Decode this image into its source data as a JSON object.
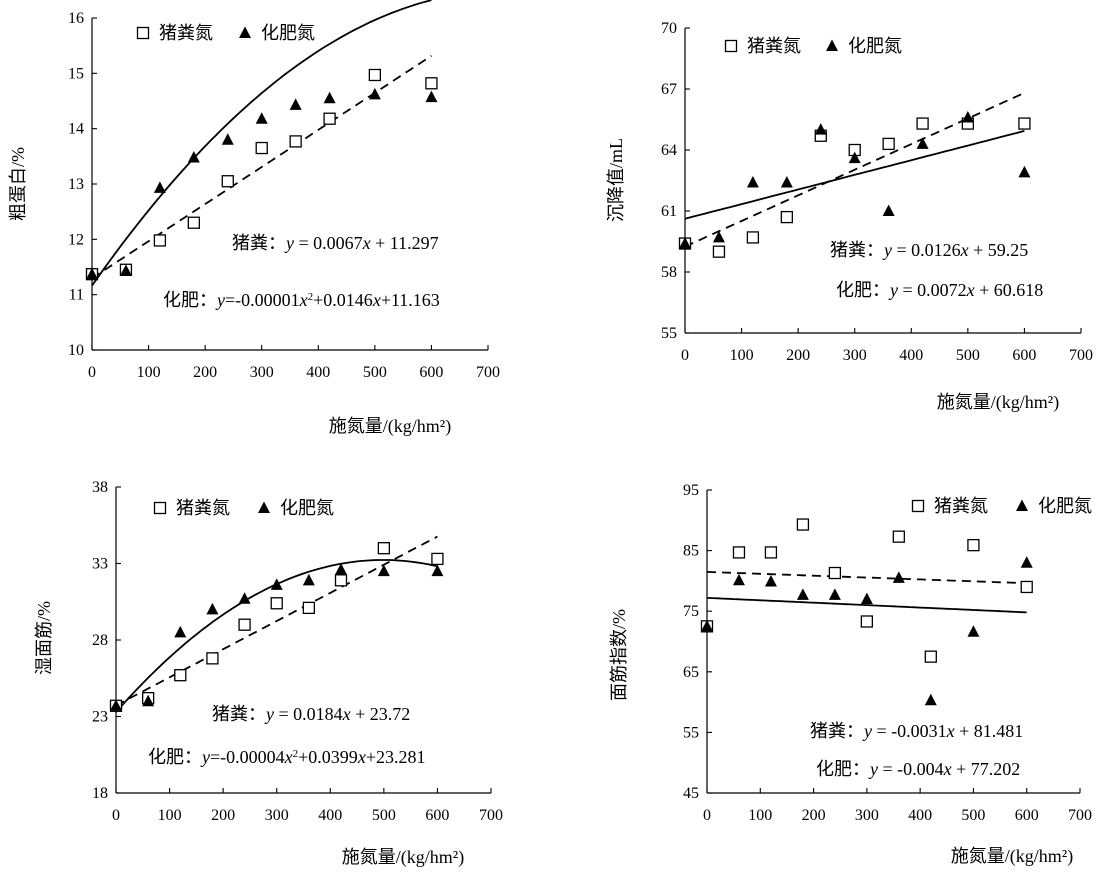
{
  "chart_data": [
    {
      "type": "scatter",
      "ylabel": "粗蛋白/%",
      "xlabel": "施氮量/(kg/hm²)",
      "xlim": [
        0,
        700
      ],
      "ylim": [
        10,
        16
      ],
      "xticks": [
        0,
        100,
        200,
        300,
        400,
        500,
        600,
        700
      ],
      "yticks": [
        10,
        11,
        12,
        13,
        14,
        15,
        16
      ],
      "legend_position": "top-left",
      "series": [
        {
          "name": "猪粪氮",
          "marker": "open-square",
          "x": [
            0,
            60,
            120,
            180,
            240,
            300,
            360,
            420,
            500,
            600
          ],
          "y": [
            11.37,
            11.45,
            11.98,
            12.3,
            13.05,
            13.65,
            13.77,
            14.18,
            14.97,
            14.82
          ]
        },
        {
          "name": "化肥氮",
          "marker": "filled-triangle",
          "x": [
            0,
            60,
            120,
            180,
            240,
            300,
            360,
            420,
            500,
            600
          ],
          "y": [
            11.37,
            11.43,
            12.93,
            13.48,
            13.8,
            14.18,
            14.43,
            14.55,
            14.62,
            14.57
          ]
        }
      ],
      "fits": [
        {
          "style": "dashed",
          "kind": "linear",
          "coef": [
            0.0067,
            11.297
          ],
          "range": [
            0,
            600
          ]
        },
        {
          "style": "solid",
          "kind": "quadratic",
          "coef": [
            -1e-05,
            0.0146,
            11.163
          ],
          "range": [
            0,
            600
          ]
        }
      ],
      "annotations": {
        "eq1_prefix": "猪粪：",
        "eq1_body": " = 0.0067",
        "eq1_tail": " + 11.297",
        "eq2_prefix": "化肥：",
        "eq2_a": "=-0.00001",
        "eq2_b": "+0.0146",
        "eq2_c": "+11.163"
      }
    },
    {
      "type": "scatter",
      "ylabel": "沉降值/mL",
      "xlabel": "施氮量/(kg/hm²)",
      "xlim": [
        0,
        700
      ],
      "ylim": [
        55,
        70
      ],
      "xticks": [
        0,
        100,
        200,
        300,
        400,
        500,
        600,
        700
      ],
      "yticks": [
        55,
        58,
        61,
        64,
        67,
        70
      ],
      "legend_position": "top-left",
      "series": [
        {
          "name": "猪粪氮",
          "marker": "open-square",
          "x": [
            0,
            60,
            120,
            180,
            240,
            300,
            360,
            420,
            500,
            600
          ],
          "y": [
            59.4,
            59.0,
            59.7,
            60.7,
            64.7,
            64.0,
            64.3,
            65.3,
            65.3,
            65.3
          ]
        },
        {
          "name": "化肥氮",
          "marker": "filled-triangle",
          "x": [
            0,
            60,
            120,
            180,
            240,
            300,
            360,
            420,
            500,
            600
          ],
          "y": [
            59.4,
            59.7,
            62.4,
            62.4,
            65.0,
            63.6,
            61.0,
            64.3,
            65.6,
            62.9
          ]
        }
      ],
      "fits": [
        {
          "style": "dashed",
          "kind": "linear",
          "coef": [
            0.0126,
            59.25
          ],
          "range": [
            0,
            600
          ]
        },
        {
          "style": "solid",
          "kind": "linear",
          "coef": [
            0.0072,
            60.618
          ],
          "range": [
            0,
            600
          ]
        }
      ],
      "annotations": {
        "eq1_prefix": "猪粪：",
        "eq1_body": " = 0.0126",
        "eq1_tail": " + 59.25",
        "eq2_prefix": "化肥：",
        "eq2_body": " = 0.0072",
        "eq2_tail": " + 60.618"
      }
    },
    {
      "type": "scatter",
      "ylabel": "湿面筋/%",
      "xlabel": "施氮量/(kg/hm²)",
      "xlim": [
        0,
        700
      ],
      "ylim": [
        18,
        38
      ],
      "xticks": [
        0,
        100,
        200,
        300,
        400,
        500,
        600,
        700
      ],
      "yticks": [
        18,
        23,
        28,
        33,
        38
      ],
      "legend_position": "top-left",
      "series": [
        {
          "name": "猪粪氮",
          "marker": "open-square",
          "x": [
            0,
            60,
            120,
            180,
            240,
            300,
            360,
            420,
            500,
            600
          ],
          "y": [
            23.7,
            24.2,
            25.7,
            26.8,
            29.0,
            30.4,
            30.1,
            31.9,
            34.0,
            33.3
          ]
        },
        {
          "name": "化肥氮",
          "marker": "filled-triangle",
          "x": [
            0,
            60,
            120,
            180,
            240,
            300,
            360,
            420,
            500,
            600
          ],
          "y": [
            23.7,
            24.0,
            28.5,
            30.0,
            30.7,
            31.6,
            31.9,
            32.6,
            32.5,
            32.5
          ]
        }
      ],
      "fits": [
        {
          "style": "dashed",
          "kind": "linear",
          "coef": [
            0.0184,
            23.72
          ],
          "range": [
            0,
            600
          ]
        },
        {
          "style": "solid",
          "kind": "quadratic",
          "coef": [
            -4e-05,
            0.0399,
            23.281
          ],
          "range": [
            0,
            600
          ]
        }
      ],
      "annotations": {
        "eq1_prefix": "猪粪：",
        "eq1_body": " = 0.0184",
        "eq1_tail": " + 23.72",
        "eq2_prefix": "化肥：",
        "eq2_a": "=-0.00004",
        "eq2_b": "+0.0399",
        "eq2_c": "+23.281"
      }
    },
    {
      "type": "scatter",
      "ylabel": "面筋指数/%",
      "xlabel": "施氮量/(kg/hm²)",
      "xlim": [
        0,
        700
      ],
      "ylim": [
        45,
        95
      ],
      "xticks": [
        0,
        100,
        200,
        300,
        400,
        500,
        600,
        700
      ],
      "yticks": [
        45,
        55,
        65,
        75,
        85,
        95
      ],
      "legend_position": "top-right",
      "series": [
        {
          "name": "猪粪氮",
          "marker": "open-square",
          "x": [
            0,
            60,
            120,
            180,
            240,
            300,
            360,
            420,
            500,
            600
          ],
          "y": [
            72.5,
            84.7,
            84.7,
            89.3,
            81.3,
            73.3,
            87.3,
            67.5,
            85.9,
            79.0
          ]
        },
        {
          "name": "化肥氮",
          "marker": "filled-triangle",
          "x": [
            0,
            60,
            120,
            180,
            240,
            300,
            360,
            420,
            500,
            600
          ],
          "y": [
            72.5,
            80.1,
            79.9,
            77.7,
            77.7,
            77.0,
            80.5,
            60.3,
            71.6,
            83.0
          ]
        }
      ],
      "fits": [
        {
          "style": "dashed",
          "kind": "linear",
          "coef": [
            -0.0031,
            81.481
          ],
          "range": [
            0,
            600
          ]
        },
        {
          "style": "solid",
          "kind": "linear",
          "coef": [
            -0.004,
            77.202
          ],
          "range": [
            0,
            600
          ]
        }
      ],
      "annotations": {
        "eq1_prefix": "猪粪：",
        "eq1_body": " = -0.0031",
        "eq1_tail": " + 81.481",
        "eq2_prefix": "化肥：",
        "eq2_body": " = -0.004",
        "eq2_tail": " + 77.202"
      }
    }
  ]
}
